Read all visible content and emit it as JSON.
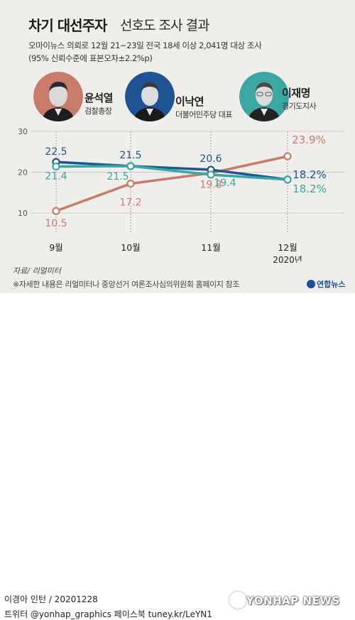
{
  "header": {
    "title_bold": "차기 대선주자",
    "title_rest": "선호도 조사 결과",
    "subtitle_line1": "오마이뉴스 의뢰로 12월 21~23일 전국 18세 이상 2,041명 대상 조사",
    "subtitle_line2": "(95% 신뢰수준에 표본오차±2.2%p)"
  },
  "candidates": [
    {
      "name": "윤석열",
      "role": "검찰총장",
      "color": "#c97b6a",
      "icon": "portrait-yoon-icon"
    },
    {
      "name": "이낙연",
      "role": "더불어민주당 대표",
      "color": "#1f5494",
      "icon": "portrait-lee-nakyon-icon"
    },
    {
      "name": "이재명",
      "role": "경기도지사",
      "color": "#3aa7a3",
      "icon": "portrait-lee-jaemyung-icon"
    }
  ],
  "chart_data": {
    "type": "line",
    "categories": [
      "9월",
      "10월",
      "11월",
      "12월"
    ],
    "x_extra_label": "2020년",
    "yticks": [
      10,
      20,
      30
    ],
    "ylim": [
      5,
      30
    ],
    "grid": true,
    "series": [
      {
        "name": "윤석열",
        "color": "#c97b6a",
        "values": [
          10.5,
          17.2,
          19.8,
          23.9
        ],
        "labels": [
          "10.5",
          "17.2",
          "19.8",
          "23.9%"
        ]
      },
      {
        "name": "이낙연",
        "color": "#1f5494",
        "values": [
          22.5,
          21.5,
          20.6,
          18.2
        ],
        "labels": [
          "22.5",
          "21.5",
          "20.6",
          "18.2%"
        ]
      },
      {
        "name": "이재명",
        "color": "#3aa7a3",
        "values": [
          21.4,
          21.5,
          19.4,
          18.2
        ],
        "labels": [
          "21.4",
          "21.5",
          "19.4",
          "18.2%"
        ]
      }
    ]
  },
  "footer": {
    "source": "자료/ 리얼미터",
    "note": "※자세한 내용은 리얼미터나 중앙선거 여론조사심의위원회 홈페이지 참조",
    "logo": "연합뉴스",
    "credit": "이경아 인턴 / 20201228",
    "social": "트위터 @yonhap_graphics  페이스북 tuney.kr/LeYN1",
    "watermark": "YONHAP NEWS"
  }
}
